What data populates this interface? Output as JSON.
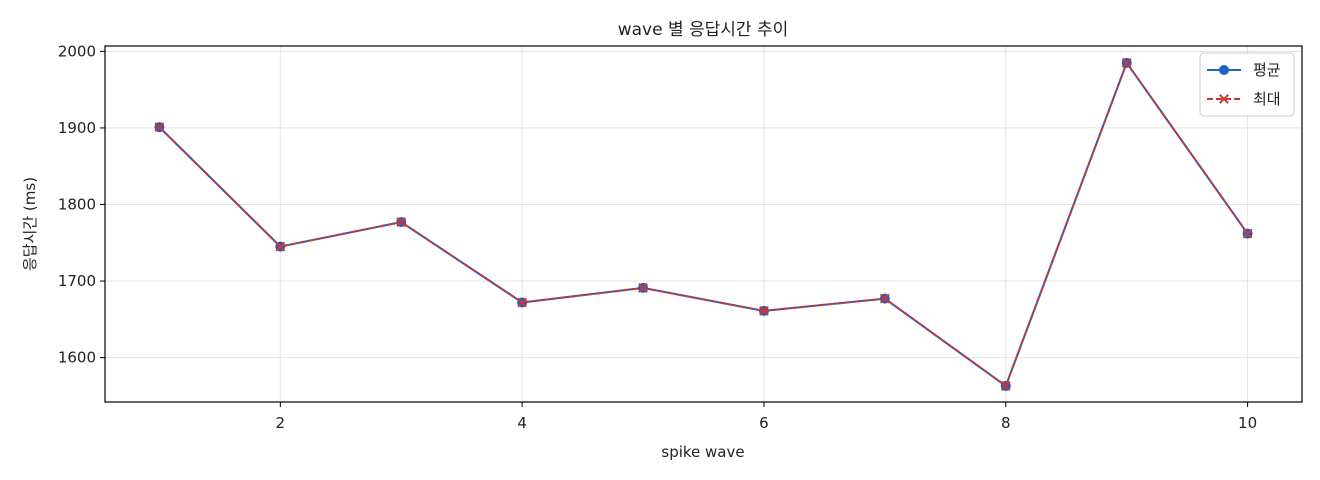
{
  "chart_data": {
    "type": "line",
    "title": "wave 별 응답시간 추이",
    "xlabel": "spike wave",
    "ylabel": "응답시간 (ms)",
    "x": [
      1,
      2,
      3,
      4,
      5,
      6,
      7,
      8,
      9,
      10
    ],
    "xlim": [
      0.55,
      10.45
    ],
    "ylim": [
      1542,
      2007
    ],
    "xticks": [
      2,
      4,
      6,
      8,
      10
    ],
    "yticks": [
      1600,
      1700,
      1800,
      1900,
      2000
    ],
    "grid": true,
    "legend_position": "top-right",
    "series": [
      {
        "name": "평균",
        "color": "#1f5fbf",
        "marker": "circle",
        "line_style": "solid",
        "values": [
          1901,
          1745,
          1777,
          1672,
          1691,
          1661,
          1677,
          1563,
          1985,
          1762
        ]
      },
      {
        "name": "최대",
        "color": "#c8383a",
        "marker": "x",
        "line_style": "dashed",
        "values": [
          1901,
          1745,
          1777,
          1672,
          1691,
          1661,
          1677,
          1563,
          1985,
          1762
        ]
      }
    ]
  }
}
